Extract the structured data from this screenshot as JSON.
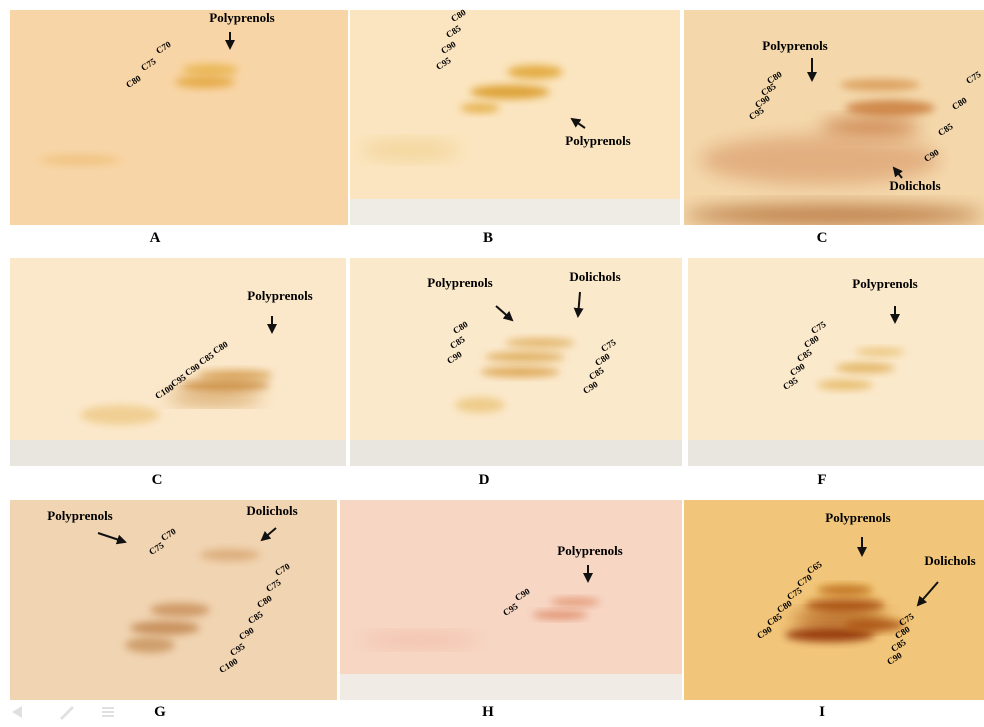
{
  "panels": [
    {
      "label": "A",
      "annotations": [
        "Polyprenols"
      ],
      "series": [
        [
          "C70",
          "C75",
          "C80"
        ]
      ]
    },
    {
      "label": "B",
      "annotations": [
        "Polyprenols"
      ],
      "series": [
        [
          "C80",
          "C85",
          "C90",
          "C95"
        ]
      ]
    },
    {
      "label": "C",
      "annotations": [
        "Polyprenols",
        "Dolichols"
      ],
      "series": [
        [
          "C80",
          "C85",
          "C90",
          "C95"
        ],
        [
          "C75",
          "C80",
          "C85",
          "C90"
        ]
      ]
    },
    {
      "label": "C",
      "annotations": [
        "Polyprenols"
      ],
      "series": [
        [
          "C80",
          "C85",
          "C90",
          "C95",
          "C100"
        ]
      ]
    },
    {
      "label": "D",
      "annotations": [
        "Polyprenols",
        "Dolichols"
      ],
      "series": [
        [
          "C80",
          "C85",
          "C90"
        ],
        [
          "C75",
          "C80",
          "C85",
          "C90"
        ]
      ]
    },
    {
      "label": "F",
      "annotations": [
        "Polyprenols"
      ],
      "series": [
        [
          "C75",
          "C80",
          "C85",
          "C90",
          "C95"
        ]
      ]
    },
    {
      "label": "G",
      "annotations": [
        "Polyprenols",
        "Dolichols"
      ],
      "series": [
        [
          "C70",
          "C75"
        ],
        [
          "C70",
          "C75",
          "C80",
          "C85",
          "C90",
          "C95",
          "C100"
        ]
      ]
    },
    {
      "label": "H",
      "annotations": [
        "Polyprenols"
      ],
      "series": [
        [
          "C90",
          "C95"
        ]
      ]
    },
    {
      "label": "I",
      "annotations": [
        "Polyprenols",
        "Dolichols"
      ],
      "series": [
        [
          "C65",
          "C70",
          "C75",
          "C80",
          "C85",
          "C90"
        ],
        [
          "C75",
          "C80",
          "C85",
          "C90"
        ]
      ]
    }
  ]
}
